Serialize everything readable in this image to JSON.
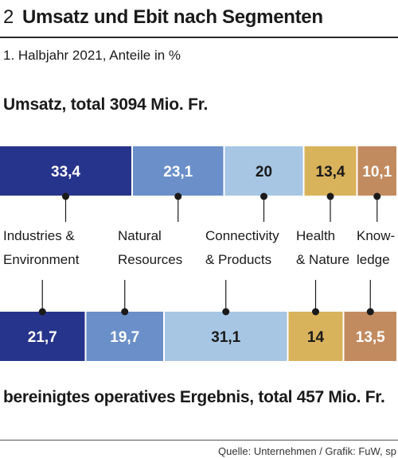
{
  "header": {
    "number": "2",
    "title": "Umsatz und Ebit nach Segmenten",
    "subtitle": "1. Halbjahr 2021, Anteile in %"
  },
  "source": "Quelle: Unternehmen / Grafik: FuW, sp",
  "chart_data": {
    "type": "bar",
    "orientation": "horizontal-stacked",
    "categories": [
      [
        "Industries &",
        "Environment"
      ],
      [
        "Natural",
        "Resources"
      ],
      [
        "Connectivity",
        "& Products"
      ],
      [
        "Health",
        "& Nature"
      ],
      [
        "Know-",
        "ledge"
      ]
    ],
    "colors": [
      "#27348b",
      "#6a8fc9",
      "#a7c6e4",
      "#d9b25c",
      "#c28a5f"
    ],
    "label_colors": [
      "#ffffff",
      "#ffffff",
      "#1a1a1a",
      "#1a1a1a",
      "#ffffff"
    ],
    "series": [
      {
        "name": "Umsatz, total 3094 Mio. Fr.",
        "values": [
          33.4,
          23.1,
          20,
          13.4,
          10.1
        ],
        "labels": [
          "33,4",
          "23,1",
          "20",
          "13,4",
          "10,1"
        ]
      },
      {
        "name": "bereinigtes operatives Ergebnis, total 457 Mio. Fr.",
        "values": [
          21.7,
          19.7,
          31.1,
          14,
          13.5
        ],
        "labels": [
          "21,7",
          "19,7",
          "31,1",
          "14",
          "13,5"
        ]
      }
    ],
    "xlim": [
      0,
      100
    ]
  }
}
